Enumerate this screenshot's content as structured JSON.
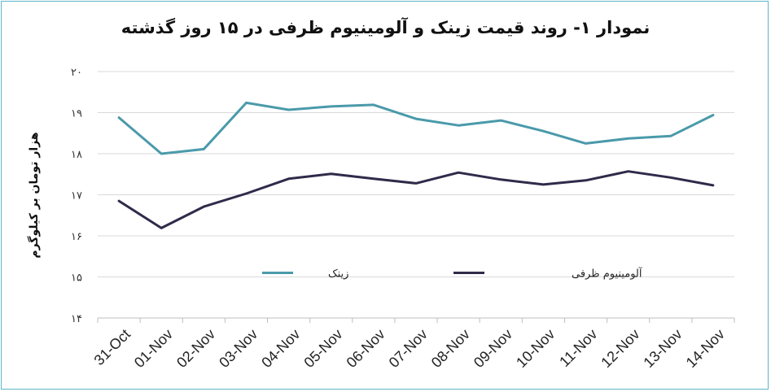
{
  "chart_data": {
    "type": "line",
    "title": "نمودار ۱- روند قیمت زینک و آلومینیوم ظرفی در ۱۵ روز گذشته",
    "ylabel": "هزار تومان بر کیلوگرم",
    "xlabel": "",
    "ylim": [
      14,
      20
    ],
    "yticks": [
      14,
      15,
      16,
      17,
      18,
      19,
      20
    ],
    "ytick_labels": [
      "۱۴",
      "۱۵",
      "۱۶",
      "۱۷",
      "۱۸",
      "۱۹",
      "۲۰"
    ],
    "categories": [
      "31-Oct",
      "01-Nov",
      "02-Nov",
      "03-Nov",
      "04-Nov",
      "05-Nov",
      "06-Nov",
      "07-Nov",
      "08-Nov",
      "09-Nov",
      "10-Nov",
      "11-Nov",
      "12-Nov",
      "13-Nov",
      "14-Nov"
    ],
    "grid": true,
    "legend_position": "middle",
    "series": [
      {
        "name": "زینک",
        "color": "#4a9aaa",
        "values": [
          18.88,
          18.0,
          18.11,
          19.24,
          19.07,
          19.15,
          19.19,
          18.85,
          18.69,
          18.81,
          18.55,
          18.25,
          18.37,
          18.43,
          18.94
        ]
      },
      {
        "name": "آلومینیوم ظرفی",
        "color": "#302a4a",
        "values": [
          16.85,
          16.19,
          16.71,
          17.03,
          17.39,
          17.51,
          17.39,
          17.28,
          17.54,
          17.37,
          17.25,
          17.35,
          17.57,
          17.42,
          17.23
        ]
      }
    ]
  }
}
